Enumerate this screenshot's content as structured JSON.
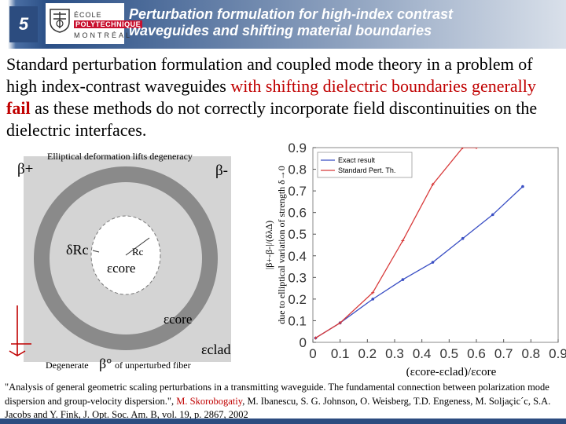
{
  "header": {
    "slide_number": "5",
    "logo_line1": "ÉCOLE",
    "logo_line2": "POLYTECHNIQUE",
    "logo_line3": "MONTRÉAL",
    "title_line1": "Perturbation formulation for high-index contrast",
    "title_line2": "waveguides and shifting material boundaries"
  },
  "intro": {
    "p1": "Standard perturbation formulation and coupled mode theory",
    "p2": " in a problem of high index-contrast waveguides ",
    "p3": "with shifting dielectric boundaries generally ",
    "p4": "fail",
    "p5": " as these methods do not correctly incorporate field discontinuities on the dielectric interfaces."
  },
  "diagram": {
    "top_label": "Elliptical deformation lifts degeneracy",
    "beta_plus": "β+",
    "beta_minus": "β-",
    "delta_rc": "δRc",
    "rc": "Rc",
    "eps_core_inner": "εcore",
    "eps_core_outer": "εcore",
    "eps_clad": "εclad",
    "degenerate": "Degenerate",
    "beta_zero": "β°",
    "unperturbed": "of unperturbed fiber"
  },
  "chart_data": {
    "type": "line",
    "xlabel": "(εcore-εclad)/εcore",
    "ylabel_line1": "|β+-β-|/(δλΔ)",
    "ylabel_line2": "due to elliptical variation of strength δ→0",
    "xlim": [
      0,
      0.9
    ],
    "ylim": [
      0,
      0.9
    ],
    "xticks": [
      "0",
      "0.1",
      "0.2",
      "0.3",
      "0.4",
      "0.5",
      "0.6",
      "0.7",
      "0.8",
      "0.9"
    ],
    "yticks": [
      "0",
      "0.1",
      "0.2",
      "0.3",
      "0.4",
      "0.5",
      "0.6",
      "0.7",
      "0.8",
      "0.9"
    ],
    "legend_position": "top-left",
    "series": [
      {
        "name": "Exact result",
        "color": "#3a4fc4",
        "x": [
          0.01,
          0.1,
          0.22,
          0.33,
          0.44,
          0.55,
          0.66,
          0.77
        ],
        "y": [
          0.02,
          0.09,
          0.2,
          0.29,
          0.37,
          0.48,
          0.59,
          0.72
        ]
      },
      {
        "name": "Standard Pert. Th.",
        "color": "#d83a3a",
        "x": [
          0.01,
          0.1,
          0.22,
          0.33,
          0.44,
          0.55,
          0.6
        ],
        "y": [
          0.02,
          0.09,
          0.23,
          0.47,
          0.73,
          0.9,
          0.9
        ]
      }
    ]
  },
  "citation": {
    "c1": "\"Analysis of general geometric scaling perturbations in a transmitting waveguide. The fundamental connection between polarization mode dispersion and group-velocity dispersion.\", ",
    "c2": "M. Skorobogatiy",
    "c3": ", M. Ibanescu, S. G. Johnson, O. Weisberg, T.D. Engeness, M. Soljaçic´c, S.A. Jacobs and Y. Fink, J. Opt. Soc. Am. B, vol. 19, p. 2867, 2002"
  },
  "colors": {
    "header_blue": "#2c4c7f",
    "accent_red": "#c00000"
  }
}
